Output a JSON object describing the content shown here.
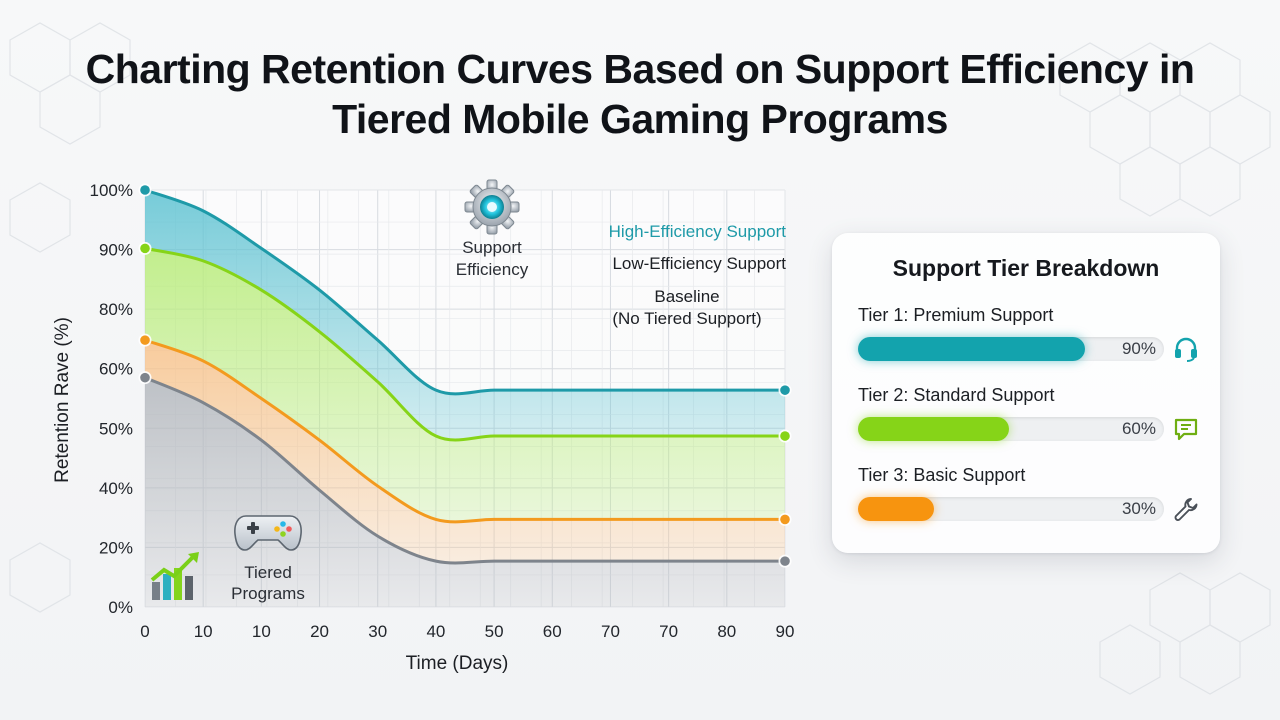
{
  "title": "Charting Retention Curves Based on Support Efficiency in Tiered Mobile Gaming Programs",
  "chart_data": {
    "type": "area",
    "xlabel": "Time (Days)",
    "ylabel": "Retention Rave (%)",
    "x_tick_labels": [
      "0",
      "10",
      "10",
      "20",
      "30",
      "40",
      "50",
      "60",
      "70",
      "70",
      "80",
      "90"
    ],
    "y_tick_labels": [
      "100%",
      "90%",
      "80%",
      "60%",
      "50%",
      "40%",
      "20%",
      "0%"
    ],
    "grid": true,
    "legend_position": "top-right",
    "legend": [
      {
        "label": "High-Efficiency Support",
        "color": "#1e9aa8"
      },
      {
        "label": "Low-Efficiency Support",
        "color": "#1c1f24"
      },
      {
        "label": "Baseline",
        "color": "#1c1f24"
      },
      {
        "label": "(No Tiered Support)",
        "color": "#1c1f24"
      }
    ],
    "series": [
      {
        "color": "#1e9aa8",
        "fill": "#5fc3d2",
        "values": [
          100,
          95,
          86,
          76,
          64,
          52,
          52,
          52,
          52,
          52,
          52,
          52
        ]
      },
      {
        "color": "#86d418",
        "fill": "#b8ec7a",
        "values": [
          86,
          83,
          76,
          66,
          54,
          41,
          41,
          41,
          41,
          41,
          41,
          41
        ]
      },
      {
        "color": "#f39a1e",
        "fill": "#f7c38c",
        "values": [
          64,
          59,
          50,
          40,
          29,
          21,
          21,
          21,
          21,
          21,
          21,
          21
        ]
      },
      {
        "color": "#7e848c",
        "fill": "#b3b7bd",
        "values": [
          55,
          49,
          40,
          28,
          17,
          11,
          11,
          11,
          11,
          11,
          11,
          11
        ]
      }
    ],
    "annotations": [
      {
        "icon": "gear-icon",
        "lines": [
          "Support",
          "Efficiency"
        ]
      },
      {
        "icon": "gamepad-icon",
        "lines": [
          "Tiered",
          "Programs"
        ]
      }
    ]
  },
  "breakdown": {
    "title": "Support Tier Breakdown",
    "tiers": [
      {
        "label": "Tier 1: Premium Support",
        "percent": 90,
        "percent_label": "90%",
        "color": "#13a3ad",
        "icon": "headset-icon"
      },
      {
        "label": "Tier 2: Standard Support",
        "percent": 60,
        "percent_label": "60%",
        "color": "#86d418",
        "icon": "chat-icon"
      },
      {
        "label": "Tier 3: Basic Support",
        "percent": 30,
        "percent_label": "30%",
        "color": "#f7940f",
        "icon": "wrench-icon"
      }
    ]
  }
}
